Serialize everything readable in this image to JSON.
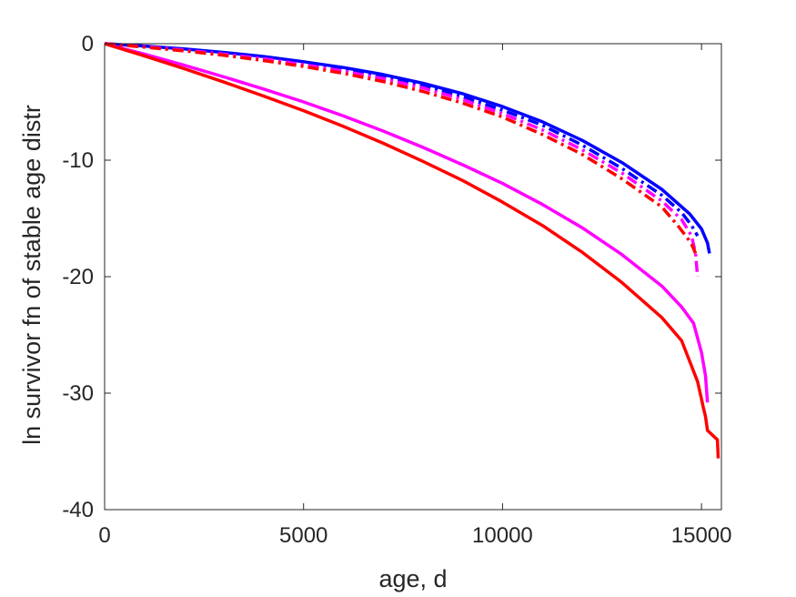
{
  "chart_data": {
    "type": "line",
    "title": "",
    "xlabel": "age, d",
    "ylabel": "ln survivor fn of stable age distr",
    "xlim": [
      0,
      15500
    ],
    "ylim": [
      -40,
      0
    ],
    "xticks": [
      0,
      5000,
      10000,
      15000
    ],
    "xtick_labels": [
      "0",
      "5000",
      "10000",
      "15000"
    ],
    "yticks": [
      0,
      -10,
      -20,
      -30,
      -40
    ],
    "ytick_labels": [
      "0",
      "-10",
      "-20",
      "-30",
      "-40"
    ],
    "grid": false,
    "legend": "none",
    "series": [
      {
        "color": "#0000ff",
        "style": "solid",
        "points": [
          [
            0,
            0
          ],
          [
            1000,
            -0.2
          ],
          [
            2000,
            -0.45
          ],
          [
            3000,
            -0.75
          ],
          [
            4000,
            -1.1
          ],
          [
            5000,
            -1.55
          ],
          [
            6000,
            -2.05
          ],
          [
            7000,
            -2.65
          ],
          [
            8000,
            -3.4
          ],
          [
            9000,
            -4.3
          ],
          [
            10000,
            -5.4
          ],
          [
            11000,
            -6.7
          ],
          [
            12000,
            -8.3
          ],
          [
            13000,
            -10.2
          ],
          [
            14000,
            -12.5
          ],
          [
            14700,
            -14.6
          ],
          [
            15000,
            -15.9
          ],
          [
            15150,
            -17.1
          ],
          [
            15200,
            -18.0
          ]
        ]
      },
      {
        "color": "#0000ff",
        "style": "dashdot",
        "points": [
          [
            0,
            0
          ],
          [
            1000,
            -0.22
          ],
          [
            2000,
            -0.5
          ],
          [
            3000,
            -0.82
          ],
          [
            4000,
            -1.2
          ],
          [
            5000,
            -1.65
          ],
          [
            6000,
            -2.2
          ],
          [
            7000,
            -2.85
          ],
          [
            8000,
            -3.6
          ],
          [
            9000,
            -4.55
          ],
          [
            10000,
            -5.7
          ],
          [
            11000,
            -7.0
          ],
          [
            12000,
            -8.7
          ],
          [
            13000,
            -10.7
          ],
          [
            14000,
            -13.0
          ],
          [
            14500,
            -14.5
          ],
          [
            14750,
            -15.6
          ],
          [
            14900,
            -16.5
          ]
        ]
      },
      {
        "color": "#ff00ff",
        "style": "dashdot",
        "points": [
          [
            0,
            0
          ],
          [
            1000,
            -0.25
          ],
          [
            2000,
            -0.55
          ],
          [
            3000,
            -0.9
          ],
          [
            4000,
            -1.3
          ],
          [
            5000,
            -1.8
          ],
          [
            6000,
            -2.35
          ],
          [
            7000,
            -3.0
          ],
          [
            8000,
            -3.8
          ],
          [
            9000,
            -4.8
          ],
          [
            10000,
            -6.0
          ],
          [
            11000,
            -7.4
          ],
          [
            12000,
            -9.1
          ],
          [
            13000,
            -11.1
          ],
          [
            14000,
            -13.5
          ],
          [
            14500,
            -15.1
          ],
          [
            14750,
            -16.5
          ],
          [
            14850,
            -18.0
          ],
          [
            14900,
            -20.0
          ]
        ]
      },
      {
        "color": "#ff0000",
        "style": "dashdot",
        "points": [
          [
            0,
            0
          ],
          [
            1000,
            -0.3
          ],
          [
            2000,
            -0.62
          ],
          [
            3000,
            -1.0
          ],
          [
            4000,
            -1.45
          ],
          [
            5000,
            -1.95
          ],
          [
            6000,
            -2.55
          ],
          [
            7000,
            -3.25
          ],
          [
            8000,
            -4.1
          ],
          [
            9000,
            -5.1
          ],
          [
            10000,
            -6.3
          ],
          [
            11000,
            -7.8
          ],
          [
            12000,
            -9.5
          ],
          [
            13000,
            -11.6
          ],
          [
            14000,
            -14.0
          ],
          [
            14400,
            -15.6
          ],
          [
            14650,
            -16.7
          ],
          [
            14750,
            -17.2
          ],
          [
            14850,
            -18.0
          ]
        ]
      },
      {
        "color": "#ff00ff",
        "style": "solid",
        "points": [
          [
            0,
            0
          ],
          [
            1000,
            -0.9
          ],
          [
            2000,
            -1.85
          ],
          [
            3000,
            -2.85
          ],
          [
            4000,
            -3.9
          ],
          [
            5000,
            -5.0
          ],
          [
            6000,
            -6.2
          ],
          [
            7000,
            -7.5
          ],
          [
            8000,
            -8.9
          ],
          [
            9000,
            -10.4
          ],
          [
            10000,
            -12.0
          ],
          [
            11000,
            -13.8
          ],
          [
            12000,
            -15.8
          ],
          [
            13000,
            -18.1
          ],
          [
            14000,
            -20.8
          ],
          [
            14500,
            -22.6
          ],
          [
            14800,
            -24.0
          ],
          [
            15000,
            -26.5
          ],
          [
            15100,
            -28.5
          ],
          [
            15150,
            -30.8
          ]
        ]
      },
      {
        "color": "#ff0000",
        "style": "solid",
        "points": [
          [
            0,
            0
          ],
          [
            1000,
            -1.05
          ],
          [
            2000,
            -2.15
          ],
          [
            3000,
            -3.3
          ],
          [
            4000,
            -4.5
          ],
          [
            5000,
            -5.75
          ],
          [
            6000,
            -7.1
          ],
          [
            7000,
            -8.55
          ],
          [
            8000,
            -10.1
          ],
          [
            9000,
            -11.75
          ],
          [
            10000,
            -13.6
          ],
          [
            11000,
            -15.6
          ],
          [
            12000,
            -17.9
          ],
          [
            13000,
            -20.5
          ],
          [
            14000,
            -23.5
          ],
          [
            14500,
            -25.5
          ],
          [
            14900,
            -29.0
          ],
          [
            15000,
            -30.5
          ],
          [
            15050,
            -31.3
          ],
          [
            15100,
            -32.0
          ],
          [
            15150,
            -33.2
          ],
          [
            15400,
            -34.0
          ],
          [
            15420,
            -35.6
          ]
        ]
      }
    ]
  }
}
